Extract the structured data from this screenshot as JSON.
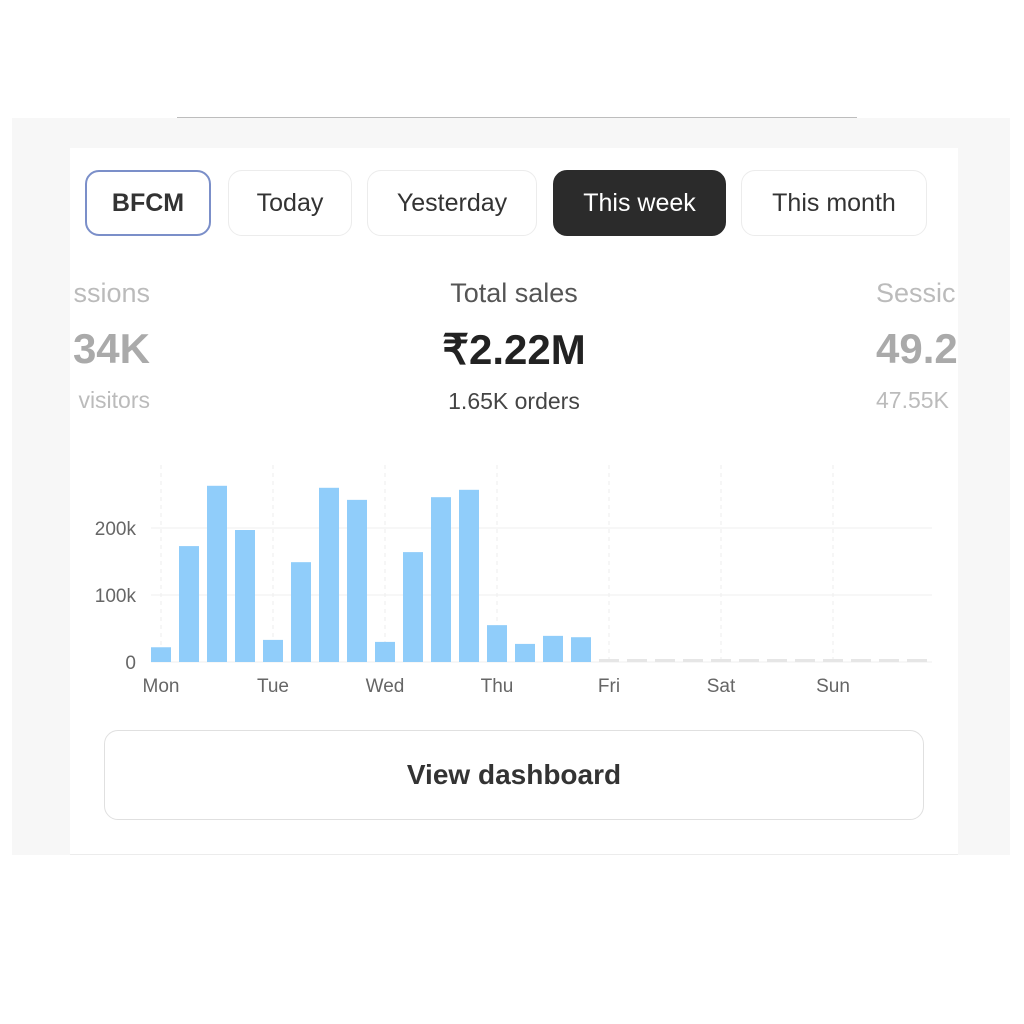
{
  "tabs": [
    {
      "label": "BFCM",
      "state": "outlined"
    },
    {
      "label": "Today"
    },
    {
      "label": "Yesterday"
    },
    {
      "label": "This week",
      "state": "selected"
    },
    {
      "label": "This month"
    }
  ],
  "metrics": {
    "left": {
      "label": "ssions",
      "value": "34K",
      "sub": "visitors"
    },
    "center": {
      "label": "Total sales",
      "value": "₹2.22M",
      "sub": "1.65K orders"
    },
    "right": {
      "label": "Sessic",
      "value": "49.2",
      "sub": "47.55K"
    }
  },
  "view_dashboard_label": "View dashboard",
  "colors": {
    "bar": "#90cdfa",
    "selected_tab": "#2b2b2b",
    "bfcm_border": "#7b8fc9",
    "placeholder_bar": "#e6e6e6"
  },
  "chart_data": {
    "type": "bar",
    "x_tick_labels": [
      "Mon",
      "Tue",
      "Wed",
      "Thu",
      "Fri",
      "Sat",
      "Sun"
    ],
    "y_tick_labels": [
      "0",
      "100k",
      "200k"
    ],
    "ylim": [
      0,
      290000
    ],
    "grid": true,
    "bars_per_day": 4,
    "values": [
      22000,
      173000,
      263000,
      197000,
      33000,
      149000,
      260000,
      242000,
      30000,
      164000,
      246000,
      257000,
      55000,
      27000,
      39000,
      37000,
      0,
      0,
      0,
      0,
      0,
      0,
      0,
      0,
      0,
      0,
      0,
      0
    ]
  }
}
